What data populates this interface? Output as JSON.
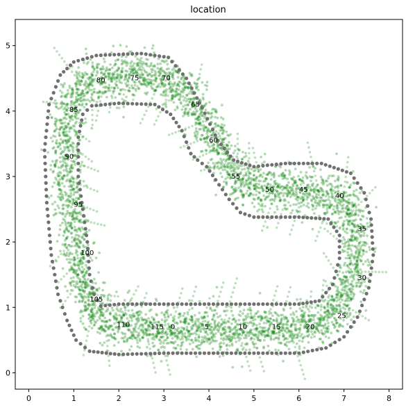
{
  "chart_data": {
    "type": "scatter",
    "title": "location",
    "xlabel": "",
    "ylabel": "",
    "xlim": [
      -0.3,
      8.3
    ],
    "ylim": [
      -0.25,
      5.4
    ],
    "xticks": [
      0,
      1,
      2,
      3,
      4,
      5,
      6,
      7,
      8
    ],
    "yticks": [
      0,
      1,
      2,
      3,
      4,
      5
    ],
    "grid": false,
    "colors": {
      "boundary": "#707070",
      "trajectory": "#008000"
    },
    "boundary_outer": [
      [
        1.35,
        0.33
      ],
      [
        2.0,
        0.28
      ],
      [
        3.0,
        0.3
      ],
      [
        4.0,
        0.3
      ],
      [
        5.0,
        0.3
      ],
      [
        6.0,
        0.3
      ],
      [
        6.6,
        0.38
      ],
      [
        7.0,
        0.55
      ],
      [
        7.3,
        0.85
      ],
      [
        7.55,
        1.3
      ],
      [
        7.65,
        1.8
      ],
      [
        7.6,
        2.35
      ],
      [
        7.45,
        2.75
      ],
      [
        7.15,
        3.05
      ],
      [
        6.5,
        3.2
      ],
      [
        5.7,
        3.2
      ],
      [
        5.0,
        3.15
      ],
      [
        4.55,
        3.25
      ],
      [
        4.2,
        3.55
      ],
      [
        3.85,
        4.05
      ],
      [
        3.5,
        4.5
      ],
      [
        3.1,
        4.82
      ],
      [
        2.5,
        4.88
      ],
      [
        1.5,
        4.85
      ],
      [
        1.0,
        4.75
      ],
      [
        0.7,
        4.55
      ],
      [
        0.45,
        4.1
      ],
      [
        0.35,
        3.4
      ],
      [
        0.4,
        2.6
      ],
      [
        0.5,
        1.8
      ],
      [
        0.65,
        1.2
      ],
      [
        0.85,
        0.8
      ],
      [
        1.05,
        0.5
      ]
    ],
    "boundary_inner": [
      [
        1.6,
        1.02
      ],
      [
        2.0,
        1.05
      ],
      [
        3.0,
        1.05
      ],
      [
        4.0,
        1.05
      ],
      [
        5.0,
        1.05
      ],
      [
        6.0,
        1.05
      ],
      [
        6.45,
        1.1
      ],
      [
        6.75,
        1.35
      ],
      [
        6.9,
        1.75
      ],
      [
        6.9,
        2.1
      ],
      [
        6.65,
        2.35
      ],
      [
        6.0,
        2.38
      ],
      [
        5.0,
        2.38
      ],
      [
        4.7,
        2.45
      ],
      [
        4.45,
        2.65
      ],
      [
        4.15,
        2.95
      ],
      [
        3.95,
        3.15
      ],
      [
        3.75,
        3.25
      ],
      [
        3.6,
        3.35
      ],
      [
        3.4,
        3.7
      ],
      [
        3.15,
        3.95
      ],
      [
        2.8,
        4.1
      ],
      [
        2.0,
        4.12
      ],
      [
        1.4,
        4.08
      ],
      [
        1.2,
        3.95
      ],
      [
        1.1,
        3.6
      ],
      [
        1.1,
        3.0
      ],
      [
        1.2,
        2.5
      ],
      [
        1.3,
        2.0
      ],
      [
        1.35,
        1.5
      ],
      [
        1.45,
        1.2
      ]
    ],
    "trajectory_centerline": [
      [
        3.15,
        0.65
      ],
      [
        3.9,
        0.66
      ],
      [
        4.7,
        0.66
      ],
      [
        5.5,
        0.66
      ],
      [
        6.15,
        0.67
      ],
      [
        6.7,
        0.82
      ],
      [
        7.05,
        1.15
      ],
      [
        7.25,
        1.6
      ],
      [
        7.3,
        2.05
      ],
      [
        7.2,
        2.5
      ],
      [
        6.9,
        2.7
      ],
      [
        6.3,
        2.75
      ],
      [
        5.6,
        2.78
      ],
      [
        4.95,
        2.83
      ],
      [
        4.55,
        3.0
      ],
      [
        4.35,
        3.3
      ],
      [
        4.1,
        3.6
      ],
      [
        3.75,
        4.05
      ],
      [
        3.3,
        4.45
      ],
      [
        2.8,
        4.55
      ],
      [
        2.2,
        4.57
      ],
      [
        1.5,
        4.5
      ],
      [
        1.05,
        4.3
      ],
      [
        0.85,
        3.9
      ],
      [
        0.8,
        3.3
      ],
      [
        0.9,
        2.6
      ],
      [
        1.05,
        2.0
      ],
      [
        1.15,
        1.5
      ],
      [
        1.3,
        1.1
      ],
      [
        1.6,
        0.85
      ],
      [
        2.1,
        0.72
      ],
      [
        2.7,
        0.67
      ]
    ],
    "waypoint_labels": [
      {
        "label": "0",
        "x": 3.2,
        "y": 0.7
      },
      {
        "label": "5",
        "x": 3.95,
        "y": 0.7
      },
      {
        "label": "10",
        "x": 4.75,
        "y": 0.7
      },
      {
        "label": "15",
        "x": 5.5,
        "y": 0.7
      },
      {
        "label": "20",
        "x": 6.25,
        "y": 0.7
      },
      {
        "label": "25",
        "x": 6.95,
        "y": 0.87
      },
      {
        "label": "30",
        "x": 7.4,
        "y": 1.45
      },
      {
        "label": "35",
        "x": 7.4,
        "y": 2.2
      },
      {
        "label": "40",
        "x": 6.9,
        "y": 2.7
      },
      {
        "label": "45",
        "x": 6.1,
        "y": 2.8
      },
      {
        "label": "50",
        "x": 5.35,
        "y": 2.8
      },
      {
        "label": "55",
        "x": 4.6,
        "y": 3.0
      },
      {
        "label": "60",
        "x": 4.1,
        "y": 3.55
      },
      {
        "label": "65",
        "x": 3.7,
        "y": 4.1
      },
      {
        "label": "70",
        "x": 3.05,
        "y": 4.5
      },
      {
        "label": "75",
        "x": 2.35,
        "y": 4.5
      },
      {
        "label": "80",
        "x": 1.6,
        "y": 4.47
      },
      {
        "label": "85",
        "x": 1.0,
        "y": 4.02
      },
      {
        "label": "90",
        "x": 0.9,
        "y": 3.3
      },
      {
        "label": "95",
        "x": 1.1,
        "y": 2.57
      },
      {
        "label": "100",
        "x": 1.3,
        "y": 1.83
      },
      {
        "label": "105",
        "x": 1.5,
        "y": 1.12
      },
      {
        "label": "110",
        "x": 2.1,
        "y": 0.73
      },
      {
        "label": "115",
        "x": 2.85,
        "y": 0.7
      }
    ]
  }
}
